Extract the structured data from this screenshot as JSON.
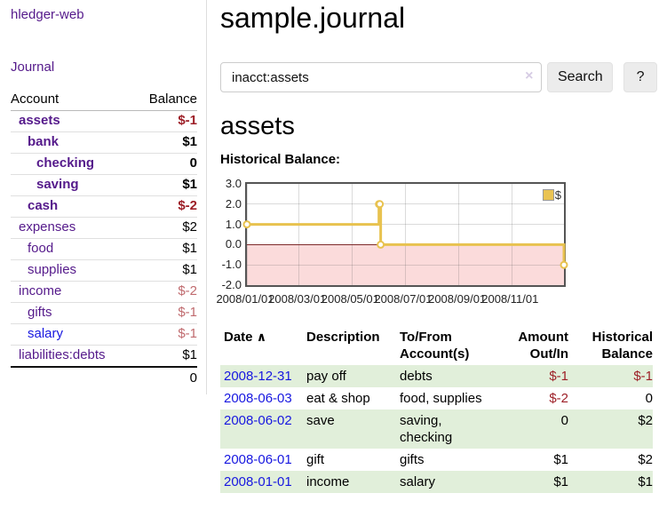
{
  "app": {
    "title": "hledger-web",
    "nav_journal": "Journal"
  },
  "sidebar": {
    "header": {
      "account": "Account",
      "balance": "Balance"
    },
    "accounts": [
      {
        "label": "assets",
        "indent": 1,
        "bold": true,
        "balance": "$-1"
      },
      {
        "label": "bank",
        "indent": 2,
        "bold": true,
        "balance": "$1"
      },
      {
        "label": "checking",
        "indent": 3,
        "bold": true,
        "balance": "0"
      },
      {
        "label": "saving",
        "indent": 3,
        "bold": true,
        "balance": "$1"
      },
      {
        "label": "cash",
        "indent": 2,
        "bold": true,
        "balance": "$-2"
      },
      {
        "label": "expenses",
        "indent": 1,
        "bold": false,
        "balance": "$2"
      },
      {
        "label": "food",
        "indent": 2,
        "bold": false,
        "balance": "$1"
      },
      {
        "label": "supplies",
        "indent": 2,
        "bold": false,
        "balance": "$1"
      },
      {
        "label": "income",
        "indent": 1,
        "bold": false,
        "balance": "$-2"
      },
      {
        "label": "gifts",
        "indent": 2,
        "bold": false,
        "balance": "$-1"
      },
      {
        "label": "salary",
        "indent": 2,
        "bold": false,
        "balance": "$-1",
        "blue_link": true
      },
      {
        "label": "liabilities:debts",
        "indent": 1,
        "bold": false,
        "balance": "$1"
      }
    ],
    "total": "0"
  },
  "main": {
    "title": "sample.journal",
    "search": {
      "value": "inacct:assets",
      "clear_icon": "×",
      "button": "Search",
      "help_button": "?"
    },
    "account_heading": "assets",
    "chart_label": "Historical Balance:"
  },
  "chart_data": {
    "type": "line",
    "step": true,
    "title": "Historical Balance:",
    "series": [
      {
        "name": "$",
        "points": [
          [
            "2008-01-01",
            1
          ],
          [
            "2008-06-01",
            2
          ],
          [
            "2008-06-02",
            2
          ],
          [
            "2008-06-03",
            0
          ],
          [
            "2008-12-31",
            -1
          ]
        ]
      }
    ],
    "x_range": [
      "2008-01-01",
      "2008-12-31"
    ],
    "ylim": [
      -2,
      3
    ],
    "y_ticks": [
      3.0,
      2.0,
      1.0,
      0.0,
      -1.0,
      -2.0
    ],
    "x_ticks": [
      "2008/01/01",
      "2008/03/01",
      "2008/05/01",
      "2008/07/01",
      "2008/09/01",
      "2008/11/01"
    ],
    "grid": true,
    "legend_position": "top-right",
    "line_color": "#e8c24f",
    "negative_region_fill": "#fbdbdb",
    "zero_line_color": "#7e2b2b"
  },
  "register": {
    "header": {
      "date": "Date",
      "sort_icon": "∧",
      "description": "Description",
      "tofrom_l1": "To/From",
      "tofrom_l2": "Account(s)",
      "amount_l1": "Amount",
      "amount_l2": "Out/In",
      "balance_l1": "Historical",
      "balance_l2": "Balance"
    },
    "rows": [
      {
        "date": "2008-12-31",
        "description": "pay off",
        "accounts": "debts",
        "amount": "$-1",
        "balance": "$-1"
      },
      {
        "date": "2008-06-03",
        "description": "eat & shop",
        "accounts": "food, supplies",
        "amount": "$-2",
        "balance": "0"
      },
      {
        "date": "2008-06-02",
        "description": "save",
        "accounts": "saving, checking",
        "amount": "0",
        "balance": "$2"
      },
      {
        "date": "2008-06-01",
        "description": "gift",
        "accounts": "gifts",
        "amount": "$1",
        "balance": "$2"
      },
      {
        "date": "2008-01-01",
        "description": "income",
        "accounts": "salary",
        "amount": "$1",
        "balance": "$1"
      }
    ]
  },
  "colors": {
    "link_purple": "#551a8b",
    "link_blue": "#1717e0",
    "negative_strong": "#9d1f27",
    "negative_soft": "#c06b6f",
    "row_shade_green": "#e1efda",
    "chart_line_gold": "#e8c24f"
  }
}
